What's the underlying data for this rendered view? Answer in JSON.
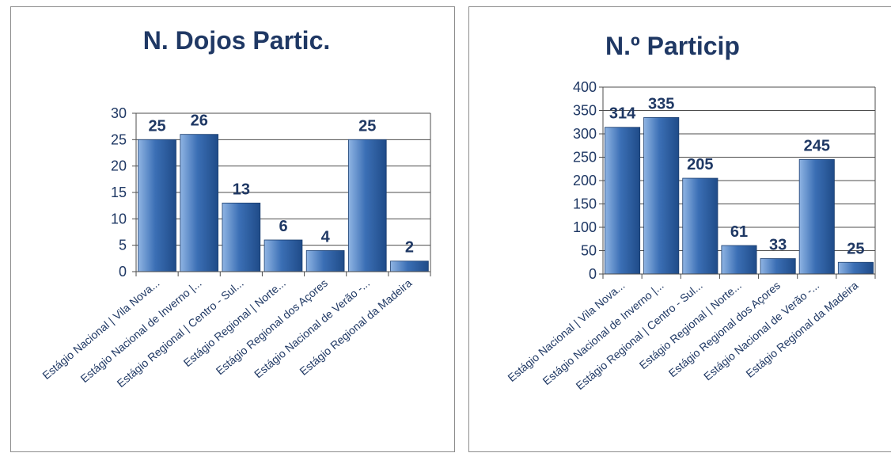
{
  "colors": {
    "bar_light": "#8fb4e3",
    "bar_mid": "#3b6fb5",
    "bar_dark": "#1f4b88",
    "text": "#1f3864",
    "grid": "#4d4d4d"
  },
  "chart_data": [
    {
      "type": "bar",
      "title": "N. Dojos Partic.",
      "categories": [
        "Estágio Nacional | Vila Nova...",
        "Estágio Nacional de Inverno |...",
        "Estágio Regional | Centro - Sul...",
        "Estágio Regional | Norte...",
        "Estágio Regional dos Açores",
        "Estágio Nacional de Verão -...",
        "Estágio Regional da Madeira"
      ],
      "values": [
        25,
        26,
        13,
        6,
        4,
        25,
        2
      ],
      "ylim": [
        0,
        30
      ],
      "yticks": [
        0,
        5,
        10,
        15,
        20,
        25,
        30
      ],
      "grid": true,
      "legend": "none"
    },
    {
      "type": "bar",
      "title": "N.º Particip",
      "categories": [
        "Estágio Nacional | Vila Nova...",
        "Estágio Nacional de Inverno |...",
        "Estágio Regional | Centro - Sul...",
        "Estágio Regional | Norte...",
        "Estágio Regional dos Açores",
        "Estágio Nacional de Verão -...",
        "Estágio Regional da Madeira"
      ],
      "values": [
        314,
        335,
        205,
        61,
        33,
        245,
        25
      ],
      "ylim": [
        0,
        400
      ],
      "yticks": [
        0,
        50,
        100,
        150,
        200,
        250,
        300,
        350,
        400
      ],
      "grid": true,
      "legend": "none"
    }
  ]
}
